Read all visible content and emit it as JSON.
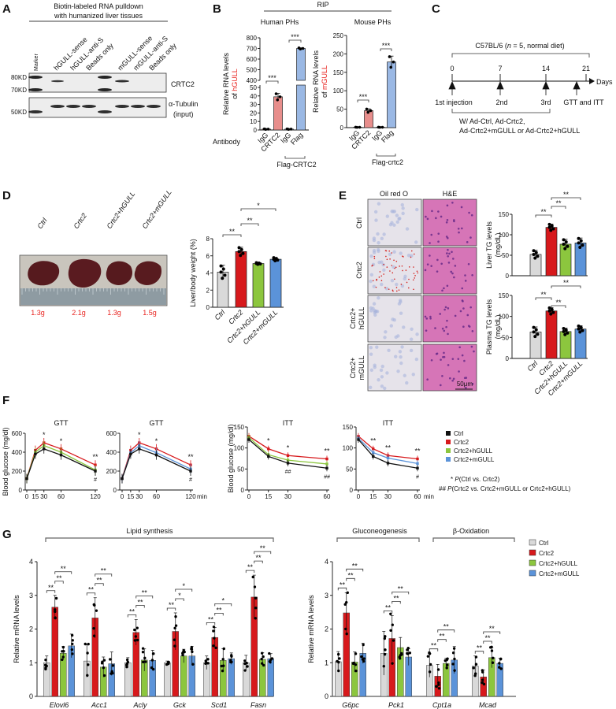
{
  "panel_labels": {
    "a": "A",
    "b": "B",
    "c": "C",
    "d": "D",
    "e": "E",
    "f": "F",
    "g": "G"
  },
  "colors": {
    "ctrl": "#d9d9d9",
    "crtc2": "#d7191c",
    "hgull": "#8cc63e",
    "mgull": "#5b93d9",
    "ctrl_line": "#111111",
    "crtc2_light": "#e88e8c",
    "flag_light": "#9ab8e4",
    "highlight": "#e8211d"
  },
  "panel_a": {
    "title_line1": "Biotin-labeled RNA pulldown",
    "title_line2": "with humanized liver tissues",
    "lanes": [
      "Marker",
      "hGULL-sense",
      "hGULL-anti-S",
      "Beads only",
      "mGULL-sense",
      "mGULL-anti-S",
      "Beads only"
    ],
    "markers": [
      "80KD",
      "70KD",
      "50KD"
    ],
    "blot1_label": "CRTC2",
    "blot2_label_line1": "α-Tubulin",
    "blot2_label_line2": "(input)"
  },
  "panel_b": {
    "header": "RIP",
    "antibody_label": "Antibody"
  },
  "panel_c": {
    "cohort_prefix": "C57BL/6 (",
    "cohort_n": "n",
    "cohort_suffix": " = 5, normal diet)",
    "days": [
      "0",
      "7",
      "14",
      "21"
    ],
    "axis_unit": "Days",
    "events": [
      "1st injection",
      "2nd",
      "3rd",
      "GTT and ITT"
    ],
    "treatment_line1": "W/ Ad-Ctrl, Ad-Crtc2,",
    "treatment_line2": "Ad-Crtc2+mGULL or Ad-Crtc2+hGULL"
  },
  "panel_d": {
    "groups": [
      "Ctrl",
      "Crtc2",
      "Crtc2+hGULL",
      "Crtc2+mGULL"
    ],
    "liver_weights": [
      "1.3g",
      "2.1g",
      "1.3g",
      "1.5g"
    ]
  },
  "panel_e": {
    "stains": [
      "Oil red O",
      "H&E"
    ],
    "rows": [
      [
        "Ctrl",
        ""
      ],
      [
        "Crtc2",
        ""
      ],
      [
        "Crtc2+",
        "hGULL"
      ],
      [
        "Crtc2+",
        "mGULL"
      ]
    ],
    "scale_bar": "50μm"
  },
  "panel_f": {
    "legend": [
      "Ctrl",
      "Crtc2",
      "Crtc2+hGULL",
      "Crtc2+mGULL"
    ],
    "note1_symbol": "* ",
    "note1_p": "P",
    "note1_text": "(Ctrl vs. Crtc2)",
    "note2_symbol": "## ",
    "note2_p": "P",
    "note2_text": "(Crtc2 vs. Crtc2+mGULL or Crtc2+hGULL)"
  },
  "panel_g": {
    "sections": [
      "Lipid synthesis",
      "Gluconeogenesis",
      "β-Oxidation"
    ],
    "legend": [
      "Ctrl",
      "Crtc2",
      "Crtc2+hGULL",
      "Crtc2+mGULL"
    ]
  },
  "chart_data": [
    {
      "type": "bar",
      "title": "Human PHs",
      "ylabel": "Relative RNA levels",
      "ylabel2_prefix": "of ",
      "ylabel2_highlight": "hGULL",
      "categories": [
        "IgG",
        "CRTC2",
        "IgG",
        "Flag"
      ],
      "group_label": "Flag-CRTC2",
      "values": [
        1,
        39,
        1,
        700
      ],
      "sd": [
        0.3,
        4,
        0.3,
        6
      ],
      "ylim": [
        0,
        800
      ],
      "axis_break": [
        50,
        400
      ],
      "yticks": [
        0,
        10,
        20,
        30,
        40,
        50,
        400,
        500,
        600,
        700,
        800
      ],
      "colors": [
        "#e88e8c",
        "#e88e8c",
        "#9ab8e4",
        "#9ab8e4"
      ],
      "significance": [
        {
          "pair": [
            0,
            1
          ],
          "label": "***"
        },
        {
          "pair": [
            2,
            3
          ],
          "label": "***"
        }
      ]
    },
    {
      "type": "bar",
      "title": "Mouse PHs",
      "ylabel": "Relative RNA levels",
      "ylabel2_prefix": "of ",
      "ylabel2_highlight": "mGULL",
      "categories": [
        "IgG",
        "CRTC2",
        "IgG",
        "Flag"
      ],
      "group_label": "Flag-crtc2",
      "values": [
        1,
        46,
        1,
        178
      ],
      "sd": [
        0.3,
        5,
        0.3,
        16
      ],
      "ylim": [
        0,
        250
      ],
      "yticks": [
        0,
        50,
        100,
        150,
        200,
        250
      ],
      "colors": [
        "#e88e8c",
        "#e88e8c",
        "#9ab8e4",
        "#9ab8e4"
      ],
      "significance": [
        {
          "pair": [
            0,
            1
          ],
          "label": "***"
        },
        {
          "pair": [
            2,
            3
          ],
          "label": "***"
        }
      ]
    },
    {
      "type": "bar",
      "ylabel": "Liver/body weight (%)",
      "categories": [
        "Ctrl",
        "Crtc2",
        "Crtc2+hGULL",
        "Crtc2+mGULL"
      ],
      "values": [
        4.1,
        6.5,
        5.1,
        5.6
      ],
      "sd": [
        0.8,
        0.5,
        0.1,
        0.2
      ],
      "ylim": [
        0,
        8
      ],
      "yticks": [
        0,
        2,
        4,
        6,
        8
      ],
      "colors": [
        "#d9d9d9",
        "#d7191c",
        "#8cc63e",
        "#5b93d9"
      ],
      "significance": [
        {
          "pair": [
            0,
            1
          ],
          "label": "**"
        },
        {
          "pair": [
            1,
            2
          ],
          "label": "**"
        },
        {
          "pair": [
            1,
            3
          ],
          "label": "*"
        }
      ]
    },
    {
      "type": "bar",
      "ylabel": "Liver TG levels",
      "ylabel2": "(mg/dL)",
      "categories": [
        "Ctrl",
        "Crtc2",
        "Crtc2+hGULL",
        "Crtc2+mGULL"
      ],
      "values": [
        52,
        118,
        77,
        80
      ],
      "sd": [
        10,
        8,
        12,
        12
      ],
      "ylim": [
        0,
        150
      ],
      "yticks": [
        0,
        50,
        100,
        150
      ],
      "colors": [
        "#d9d9d9",
        "#d7191c",
        "#8cc63e",
        "#5b93d9"
      ],
      "significance": [
        {
          "pair": [
            0,
            1
          ],
          "label": "**"
        },
        {
          "pair": [
            1,
            2
          ],
          "label": "**"
        },
        {
          "pair": [
            1,
            3
          ],
          "label": "**"
        }
      ]
    },
    {
      "type": "bar",
      "ylabel": "Plasma TG levels",
      "ylabel2": "(mg/dL)",
      "categories": [
        "Ctrl",
        "Crtc2",
        "Crtc2+hGULL",
        "Crtc2+mGULL"
      ],
      "values": [
        63,
        113,
        64,
        70
      ],
      "sd": [
        12,
        8,
        8,
        8
      ],
      "ylim": [
        0,
        150
      ],
      "yticks": [
        0,
        50,
        100,
        150
      ],
      "colors": [
        "#d9d9d9",
        "#d7191c",
        "#8cc63e",
        "#5b93d9"
      ],
      "significance": [
        {
          "pair": [
            0,
            1
          ],
          "label": "**"
        },
        {
          "pair": [
            1,
            2
          ],
          "label": "**"
        },
        {
          "pair": [
            1,
            3
          ],
          "label": "**"
        }
      ]
    },
    {
      "type": "line",
      "title": "GTT",
      "ylabel": "Blood glucose (mg/dl)",
      "x": [
        0,
        15,
        30,
        60,
        120
      ],
      "xticks": [
        "0",
        "15",
        "30",
        "60",
        "120"
      ],
      "xunit": "",
      "ylim": [
        0,
        600
      ],
      "yticks": [
        0,
        200,
        400,
        600
      ],
      "series": [
        {
          "name": "Crtc2",
          "color": "#d7191c",
          "values": [
            122,
            420,
            500,
            435,
            265
          ]
        },
        {
          "name": "Crtc2+hGULL",
          "color": "#8cc63e",
          "values": [
            121,
            400,
            470,
            400,
            212
          ]
        },
        {
          "name": "Ctrl",
          "color": "#111111",
          "values": [
            120,
            380,
            435,
            370,
            200
          ]
        }
      ],
      "significance": [
        {
          "x": 30,
          "label": "*"
        },
        {
          "x": 60,
          "label": "*"
        },
        {
          "x": 120,
          "label": "**"
        }
      ],
      "hash": [
        {
          "x": 120,
          "label": "#"
        }
      ]
    },
    {
      "type": "line",
      "title": "GTT",
      "x": [
        0,
        15,
        30,
        60,
        120
      ],
      "xticks": [
        "0",
        "15",
        "30",
        "60",
        "120"
      ],
      "xunit": "min",
      "ylim": [
        0,
        600
      ],
      "yticks": [
        0,
        200,
        400,
        600
      ],
      "series": [
        {
          "name": "Crtc2",
          "color": "#d7191c",
          "values": [
            122,
            420,
            500,
            435,
            265
          ]
        },
        {
          "name": "Crtc2+mGULL",
          "color": "#5b93d9",
          "values": [
            121,
            395,
            468,
            395,
            222
          ]
        },
        {
          "name": "Ctrl",
          "color": "#111111",
          "values": [
            120,
            380,
            435,
            370,
            200
          ]
        }
      ],
      "significance": [
        {
          "x": 30,
          "label": "*"
        },
        {
          "x": 60,
          "label": "*"
        },
        {
          "x": 120,
          "label": "**"
        }
      ],
      "hash": [
        {
          "x": 120,
          "label": "#"
        }
      ]
    },
    {
      "type": "line",
      "title": "ITT",
      "ylabel": "Blood glucose (mg/dl)",
      "x": [
        0,
        15,
        30,
        60
      ],
      "xticks": [
        "0",
        "15",
        "30",
        "60"
      ],
      "xunit": "",
      "ylim": [
        0,
        150
      ],
      "yticks": [
        0,
        50,
        100,
        150
      ],
      "series": [
        {
          "name": "Crtc2",
          "color": "#d7191c",
          "values": [
            128,
            98,
            82,
            74
          ]
        },
        {
          "name": "Crtc2+hGULL",
          "color": "#8cc63e",
          "values": [
            125,
            84,
            71,
            62
          ]
        },
        {
          "name": "Ctrl",
          "color": "#111111",
          "values": [
            120,
            80,
            64,
            52
          ]
        }
      ],
      "significance": [
        {
          "x": 15,
          "label": "*"
        },
        {
          "x": 30,
          "label": "*"
        },
        {
          "x": 60,
          "label": "**"
        }
      ],
      "hash": [
        {
          "x": 30,
          "label": "##"
        },
        {
          "x": 60,
          "label": "##"
        }
      ]
    },
    {
      "type": "line",
      "title": "ITT",
      "x": [
        0,
        15,
        30,
        60
      ],
      "xticks": [
        "0",
        "15",
        "30",
        "60"
      ],
      "xunit": "min",
      "ylim": [
        0,
        150
      ],
      "yticks": [
        0,
        50,
        100,
        150
      ],
      "series": [
        {
          "name": "Crtc2",
          "color": "#d7191c",
          "values": [
            128,
            98,
            82,
            74
          ]
        },
        {
          "name": "Crtc2+mGULL",
          "color": "#5b93d9",
          "values": [
            123,
            89,
            76,
            63
          ]
        },
        {
          "name": "Ctrl",
          "color": "#111111",
          "values": [
            120,
            80,
            64,
            52
          ]
        }
      ],
      "significance": [
        {
          "x": 15,
          "label": "**"
        },
        {
          "x": 30,
          "label": "**"
        },
        {
          "x": 60,
          "label": "**"
        }
      ],
      "hash": [
        {
          "x": 60,
          "label": "#"
        }
      ]
    },
    {
      "type": "bar",
      "ylabel": "Relative mRNA levels",
      "ylim": [
        0,
        4
      ],
      "yticks": [
        0,
        1,
        2,
        3,
        4
      ],
      "categories": [
        "Elovl6",
        "Acc1",
        "Acly",
        "Gck",
        "Scd1",
        "Fasn"
      ],
      "series": [
        {
          "name": "Ctrl",
          "color": "#d9d9d9",
          "values": [
            1.0,
            1.05,
            1.0,
            1.0,
            1.0,
            1.0
          ],
          "sd": [
            0.2,
            0.48,
            0.15,
            0.05,
            0.2,
            0.22
          ]
        },
        {
          "name": "Crtc2",
          "color": "#d7191c",
          "values": [
            2.65,
            2.33,
            1.9,
            1.93,
            1.75,
            2.95
          ],
          "sd": [
            0.35,
            0.6,
            0.38,
            0.55,
            0.3,
            0.65
          ]
        },
        {
          "name": "Crtc2+hGULL",
          "color": "#8cc63e",
          "values": [
            1.28,
            0.87,
            1.08,
            1.2,
            1.07,
            1.1
          ],
          "sd": [
            0.2,
            0.3,
            0.33,
            0.2,
            0.35,
            0.2
          ]
        },
        {
          "name": "Crtc2+mGULL",
          "color": "#5b93d9",
          "values": [
            1.5,
            0.97,
            1.07,
            1.2,
            1.12,
            1.12
          ],
          "sd": [
            0.35,
            0.35,
            0.3,
            0.28,
            0.17,
            0.15
          ]
        }
      ],
      "significance": [
        [
          "**",
          "**",
          "**"
        ],
        [
          "**",
          "**",
          "**"
        ],
        [
          "**",
          "**",
          "**"
        ],
        [
          "**",
          "*",
          "*"
        ],
        [
          "**",
          "**",
          "*"
        ],
        [
          "**",
          "**",
          "**"
        ]
      ]
    },
    {
      "type": "bar",
      "ylabel": "Relative mRNA levels",
      "ylim": [
        0,
        4
      ],
      "yticks": [
        0,
        1,
        2,
        3,
        4
      ],
      "categories": [
        "G6pc",
        "Pck1",
        "Cpt1a",
        "Mcad"
      ],
      "series": [
        {
          "name": "Ctrl",
          "color": "#d9d9d9",
          "values": [
            1.03,
            1.28,
            0.92,
            0.9
          ],
          "sd": [
            0.3,
            0.65,
            0.35,
            0.3
          ]
        },
        {
          "name": "Crtc2",
          "color": "#d7191c",
          "values": [
            2.48,
            1.72,
            0.6,
            0.58
          ],
          "sd": [
            0.6,
            0.68,
            0.35,
            0.2
          ]
        },
        {
          "name": "Crtc2+hGULL",
          "color": "#8cc63e",
          "values": [
            1.02,
            1.45,
            0.98,
            1.15
          ],
          "sd": [
            0.3,
            0.3,
            0.15,
            0.3
          ]
        },
        {
          "name": "Crtc2+mGULL",
          "color": "#5b93d9",
          "values": [
            1.28,
            1.17,
            1.08,
            0.98
          ],
          "sd": [
            0.3,
            0.25,
            0.4,
            0.15
          ]
        }
      ],
      "significance": [
        [
          "**",
          "**",
          "**"
        ],
        [
          "**",
          "**",
          "**"
        ],
        [
          "**",
          "**",
          "**"
        ],
        [
          "**",
          "**",
          "**"
        ]
      ]
    }
  ]
}
